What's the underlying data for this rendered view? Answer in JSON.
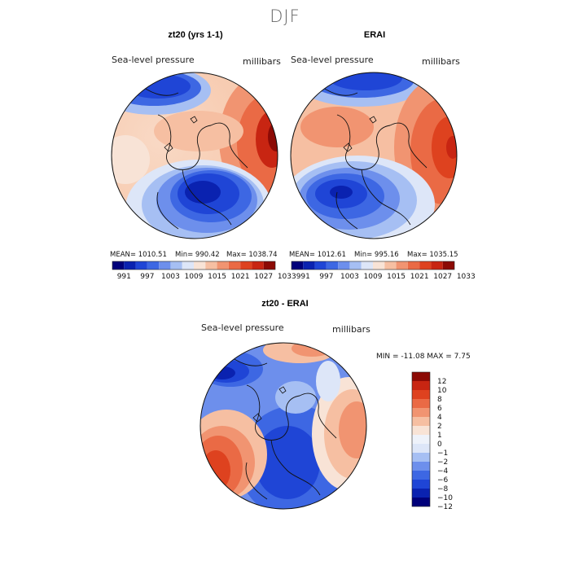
{
  "figure": {
    "title": "DJF"
  },
  "panels": [
    {
      "title": "zt20 (yrs 1-1)",
      "variable": "Sea-level pressure",
      "units": "millibars",
      "stats": {
        "mean": "MEAN= 1010.51",
        "min": "Min= 990.42",
        "max": "Max= 1038.74"
      }
    },
    {
      "title": "ERAI",
      "variable": "Sea-level pressure",
      "units": "millibars",
      "stats": {
        "mean": "MEAN= 1012.61",
        "min": "Min= 995.16",
        "max": "Max= 1035.15"
      }
    },
    {
      "title": "zt20 - ERAI",
      "variable": "Sea-level pressure",
      "units": "millibars",
      "range_text": "MIN = -11.08 MAX =   7.75"
    }
  ],
  "colorbar_horizontal": {
    "labels": [
      "991",
      "997",
      "1003",
      "1009",
      "1015",
      "1021",
      "1027",
      "1033"
    ],
    "colors": [
      "#00007a",
      "#0a22b0",
      "#1f45d6",
      "#3d67e3",
      "#6d8fec",
      "#a6bff3",
      "#dde6f8",
      "#f8e3d6",
      "#f6bfa2",
      "#f19471",
      "#ea6a45",
      "#de421f",
      "#c82512",
      "#8c0a05"
    ]
  },
  "colorbar_vertical": {
    "labels": [
      "12",
      "10",
      "8",
      "6",
      "4",
      "2",
      "1",
      "0",
      "−1",
      "−2",
      "−4",
      "−6",
      "−8",
      "−10",
      "−12"
    ],
    "colors": [
      "#8c0a05",
      "#c82512",
      "#de421f",
      "#ea6a45",
      "#f19471",
      "#f6bfa2",
      "#f8e3d6",
      "#eef2fa",
      "#dde6f8",
      "#a6bff3",
      "#6d8fec",
      "#3d67e3",
      "#1f45d6",
      "#0a22b0",
      "#00007a"
    ]
  }
}
